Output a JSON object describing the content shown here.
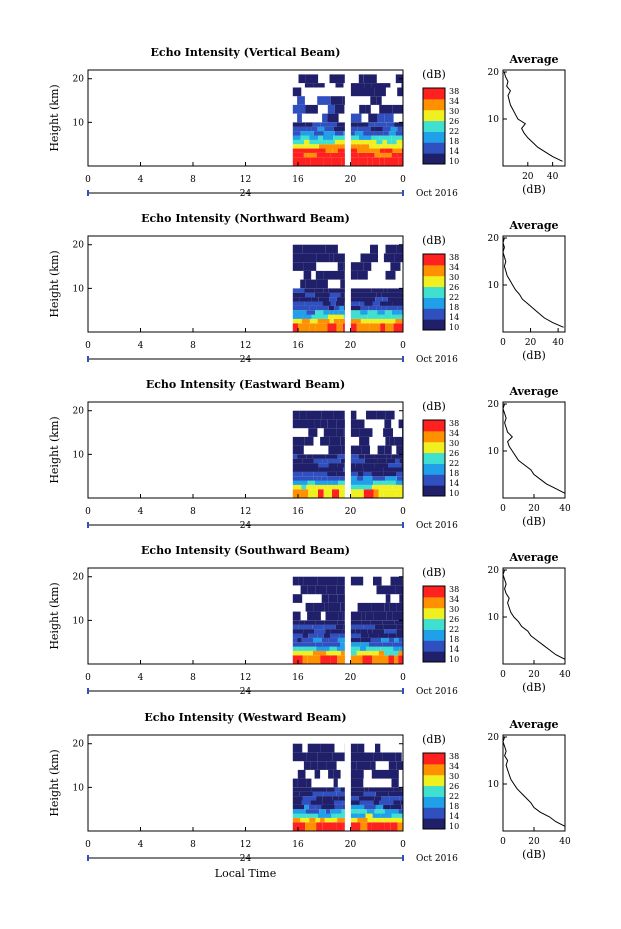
{
  "chart_data": [
    {
      "type": "heatmap",
      "title": "Echo Intensity (Vertical Beam)",
      "ylabel": "Height (km)",
      "x_ticks": [
        "0",
        "4",
        "8",
        "12",
        "16",
        "20",
        "0"
      ],
      "y_ticks": [
        "20",
        "10"
      ],
      "date_label": "24",
      "month_label": "Oct 2016",
      "colorbar_label": "(dB)",
      "colorbar_ticks": [
        "38",
        "34",
        "30",
        "26",
        "22",
        "18",
        "14",
        "10"
      ],
      "colorbar_range": [
        10,
        38
      ],
      "colors": [
        "#20206a",
        "#3050c0",
        "#20a0e8",
        "#40e0d0",
        "#f0f020",
        "#ff9000",
        "#ff2020"
      ],
      "data_start_hour": 15.6,
      "gap_hour": 19.8,
      "data_end_hour": 24,
      "heatmap_rows": [
        {
          "height_km": 1,
          "value": 38
        },
        {
          "height_km": 2,
          "value": 36
        },
        {
          "height_km": 3,
          "value": 34
        },
        {
          "height_km": 4,
          "value": 30
        },
        {
          "height_km": 5,
          "value": 26
        },
        {
          "height_km": 6,
          "value": 22
        },
        {
          "height_km": 7,
          "value": 18
        },
        {
          "height_km": 8,
          "value": 16
        },
        {
          "height_km": 9,
          "value": 14
        },
        {
          "height_km": 10,
          "value": 14
        },
        {
          "height_km": 12,
          "value": 12
        },
        {
          "height_km": 14,
          "value": 12
        },
        {
          "height_km": 16,
          "value": 11
        },
        {
          "height_km": 18,
          "value": 10
        },
        {
          "height_km": 19,
          "value": 10
        }
      ],
      "average": {
        "title": "Average",
        "xlabel": "(dB)",
        "x_ticks": [
          "20",
          "40"
        ],
        "xlim": [
          0,
          50
        ],
        "y_ticks": [
          "20",
          "10"
        ],
        "ylim": [
          0,
          20
        ],
        "profile": [
          [
            48,
            1
          ],
          [
            40,
            2
          ],
          [
            34,
            3
          ],
          [
            28,
            4
          ],
          [
            24,
            5
          ],
          [
            20,
            6
          ],
          [
            17,
            7
          ],
          [
            15,
            8
          ],
          [
            18,
            9
          ],
          [
            12,
            10
          ],
          [
            10,
            11
          ],
          [
            8,
            12
          ],
          [
            6,
            13
          ],
          [
            5,
            14
          ],
          [
            4,
            15
          ],
          [
            6,
            16
          ],
          [
            3,
            17
          ],
          [
            4,
            18
          ],
          [
            2,
            19
          ],
          [
            1,
            20
          ]
        ]
      }
    },
    {
      "type": "heatmap",
      "title": "Echo Intensity (Northward Beam)",
      "ylabel": "Height (km)",
      "x_ticks": [
        "0",
        "4",
        "8",
        "12",
        "16",
        "20",
        "0"
      ],
      "y_ticks": [
        "20",
        "10"
      ],
      "date_label": "24",
      "month_label": "Oct 2016",
      "colorbar_label": "(dB)",
      "colorbar_ticks": [
        "38",
        "34",
        "30",
        "26",
        "22",
        "18",
        "14",
        "10"
      ],
      "colorbar_range": [
        10,
        38
      ],
      "colors": [
        "#20206a",
        "#3050c0",
        "#20a0e8",
        "#40e0d0",
        "#f0f020",
        "#ff9000",
        "#ff2020"
      ],
      "data_start_hour": 15.6,
      "gap_hour": 19.8,
      "data_end_hour": 24,
      "heatmap_rows": [
        {
          "height_km": 1,
          "value": 34
        },
        {
          "height_km": 2,
          "value": 30
        },
        {
          "height_km": 3,
          "value": 24
        },
        {
          "height_km": 4,
          "value": 20
        },
        {
          "height_km": 5,
          "value": 16
        },
        {
          "height_km": 6,
          "value": 14
        },
        {
          "height_km": 7,
          "value": 13
        },
        {
          "height_km": 8,
          "value": 12
        },
        {
          "height_km": 9,
          "value": 11
        },
        {
          "height_km": 10,
          "value": 10
        },
        {
          "height_km": 12,
          "value": 10
        },
        {
          "height_km": 14,
          "value": 10
        },
        {
          "height_km": 16,
          "value": 10
        },
        {
          "height_km": 18,
          "value": 10
        }
      ],
      "average": {
        "title": "Average",
        "xlabel": "(dB)",
        "x_ticks": [
          "0",
          "20",
          "40"
        ],
        "xlim": [
          0,
          45
        ],
        "y_ticks": [
          "20",
          "10"
        ],
        "ylim": [
          0,
          20
        ],
        "profile": [
          [
            44,
            1
          ],
          [
            36,
            2
          ],
          [
            30,
            3
          ],
          [
            26,
            4
          ],
          [
            22,
            5
          ],
          [
            18,
            6
          ],
          [
            14,
            7
          ],
          [
            12,
            8
          ],
          [
            9,
            9
          ],
          [
            7,
            10
          ],
          [
            5,
            11
          ],
          [
            3,
            12
          ],
          [
            2,
            13
          ],
          [
            1,
            14
          ],
          [
            2,
            15
          ],
          [
            1,
            16
          ],
          [
            0,
            17
          ],
          [
            1,
            18
          ],
          [
            0,
            19
          ],
          [
            1,
            20
          ]
        ]
      }
    },
    {
      "type": "heatmap",
      "title": "Echo Intensity (Eastward Beam)",
      "ylabel": "Height (km)",
      "x_ticks": [
        "0",
        "4",
        "8",
        "12",
        "16",
        "20",
        "0"
      ],
      "y_ticks": [
        "20",
        "10"
      ],
      "date_label": "24",
      "month_label": "Oct 2016",
      "colorbar_label": "(dB)",
      "colorbar_ticks": [
        "38",
        "34",
        "30",
        "26",
        "22",
        "18",
        "14",
        "10"
      ],
      "colorbar_range": [
        10,
        38
      ],
      "colors": [
        "#20206a",
        "#3050c0",
        "#20a0e8",
        "#40e0d0",
        "#f0f020",
        "#ff9000",
        "#ff2020"
      ],
      "data_start_hour": 15.6,
      "gap_hour": 19.8,
      "data_end_hour": 24,
      "heatmap_rows": [
        {
          "height_km": 1,
          "value": 32
        },
        {
          "height_km": 2,
          "value": 26
        },
        {
          "height_km": 3,
          "value": 22
        },
        {
          "height_km": 4,
          "value": 18
        },
        {
          "height_km": 5,
          "value": 15
        },
        {
          "height_km": 6,
          "value": 13
        },
        {
          "height_km": 7,
          "value": 12
        },
        {
          "height_km": 8,
          "value": 12
        },
        {
          "height_km": 9,
          "value": 11
        },
        {
          "height_km": 10,
          "value": 10
        },
        {
          "height_km": 12,
          "value": 10
        },
        {
          "height_km": 14,
          "value": 10
        },
        {
          "height_km": 16,
          "value": 10
        },
        {
          "height_km": 18,
          "value": 10
        }
      ],
      "average": {
        "title": "Average",
        "xlabel": "(dB)",
        "x_ticks": [
          "0",
          "20",
          "40"
        ],
        "xlim": [
          0,
          40
        ],
        "y_ticks": [
          "20",
          "10"
        ],
        "ylim": [
          0,
          20
        ],
        "profile": [
          [
            40,
            1
          ],
          [
            34,
            2
          ],
          [
            28,
            3
          ],
          [
            24,
            4
          ],
          [
            20,
            5
          ],
          [
            18,
            6
          ],
          [
            14,
            7
          ],
          [
            10,
            8
          ],
          [
            8,
            9
          ],
          [
            6,
            10
          ],
          [
            4,
            11
          ],
          [
            3,
            12
          ],
          [
            6,
            13
          ],
          [
            3,
            14
          ],
          [
            2,
            15
          ],
          [
            1,
            16
          ],
          [
            2,
            17
          ],
          [
            1,
            18
          ],
          [
            0,
            19
          ],
          [
            1,
            20
          ]
        ]
      }
    },
    {
      "type": "heatmap",
      "title": "Echo Intensity (Southward Beam)",
      "ylabel": "Height (km)",
      "x_ticks": [
        "0",
        "4",
        "8",
        "12",
        "16",
        "20",
        "0"
      ],
      "y_ticks": [
        "20",
        "10"
      ],
      "date_label": "24",
      "month_label": "Oct 2016",
      "colorbar_label": "(dB)",
      "colorbar_ticks": [
        "38",
        "34",
        "30",
        "26",
        "22",
        "18",
        "14",
        "10"
      ],
      "colorbar_range": [
        10,
        38
      ],
      "colors": [
        "#20206a",
        "#3050c0",
        "#20a0e8",
        "#40e0d0",
        "#f0f020",
        "#ff9000",
        "#ff2020"
      ],
      "data_start_hour": 15.6,
      "gap_hour": 19.8,
      "data_end_hour": 24,
      "heatmap_rows": [
        {
          "height_km": 1,
          "value": 34
        },
        {
          "height_km": 2,
          "value": 28
        },
        {
          "height_km": 3,
          "value": 22
        },
        {
          "height_km": 4,
          "value": 18
        },
        {
          "height_km": 5,
          "value": 15
        },
        {
          "height_km": 6,
          "value": 13
        },
        {
          "height_km": 7,
          "value": 12
        },
        {
          "height_km": 8,
          "value": 12
        },
        {
          "height_km": 9,
          "value": 11
        },
        {
          "height_km": 10,
          "value": 10
        },
        {
          "height_km": 12,
          "value": 10
        },
        {
          "height_km": 14,
          "value": 10
        },
        {
          "height_km": 16,
          "value": 10
        },
        {
          "height_km": 18,
          "value": 10
        }
      ],
      "average": {
        "title": "Average",
        "xlabel": "(dB)",
        "x_ticks": [
          "0",
          "20",
          "40"
        ],
        "xlim": [
          0,
          40
        ],
        "y_ticks": [
          "20",
          "10"
        ],
        "ylim": [
          0,
          20
        ],
        "profile": [
          [
            40,
            1
          ],
          [
            34,
            2
          ],
          [
            30,
            3
          ],
          [
            26,
            4
          ],
          [
            22,
            5
          ],
          [
            18,
            6
          ],
          [
            16,
            7
          ],
          [
            12,
            8
          ],
          [
            10,
            9
          ],
          [
            7,
            10
          ],
          [
            5,
            11
          ],
          [
            4,
            12
          ],
          [
            3,
            13
          ],
          [
            4,
            14
          ],
          [
            2,
            15
          ],
          [
            1,
            16
          ],
          [
            2,
            17
          ],
          [
            1,
            18
          ],
          [
            0,
            19
          ],
          [
            1,
            20
          ]
        ]
      }
    },
    {
      "type": "heatmap",
      "title": "Echo Intensity (Westward Beam)",
      "ylabel": "Height (km)",
      "xlabel": "Local Time",
      "x_ticks": [
        "0",
        "4",
        "8",
        "12",
        "16",
        "20",
        "0"
      ],
      "y_ticks": [
        "20",
        "10"
      ],
      "date_label": "24",
      "month_label": "Oct 2016",
      "colorbar_label": "(dB)",
      "colorbar_ticks": [
        "38",
        "34",
        "30",
        "26",
        "22",
        "18",
        "14",
        "10"
      ],
      "colorbar_range": [
        10,
        38
      ],
      "colors": [
        "#20206a",
        "#3050c0",
        "#20a0e8",
        "#40e0d0",
        "#f0f020",
        "#ff9000",
        "#ff2020"
      ],
      "data_start_hour": 15.6,
      "gap_hour": 19.8,
      "data_end_hour": 24,
      "heatmap_rows": [
        {
          "height_km": 1,
          "value": 36
        },
        {
          "height_km": 2,
          "value": 30
        },
        {
          "height_km": 3,
          "value": 24
        },
        {
          "height_km": 4,
          "value": 20
        },
        {
          "height_km": 5,
          "value": 16
        },
        {
          "height_km": 6,
          "value": 14
        },
        {
          "height_km": 7,
          "value": 13
        },
        {
          "height_km": 8,
          "value": 12
        },
        {
          "height_km": 9,
          "value": 11
        },
        {
          "height_km": 10,
          "value": 10
        },
        {
          "height_km": 12,
          "value": 10
        },
        {
          "height_km": 14,
          "value": 10
        },
        {
          "height_km": 16,
          "value": 10
        },
        {
          "height_km": 18,
          "value": 10
        }
      ],
      "average": {
        "title": "Average",
        "xlabel": "(dB)",
        "x_ticks": [
          "0",
          "20",
          "40"
        ],
        "xlim": [
          0,
          40
        ],
        "y_ticks": [
          "20",
          "10"
        ],
        "ylim": [
          0,
          20
        ],
        "profile": [
          [
            40,
            1
          ],
          [
            34,
            2
          ],
          [
            30,
            3
          ],
          [
            24,
            4
          ],
          [
            20,
            5
          ],
          [
            18,
            6
          ],
          [
            15,
            7
          ],
          [
            12,
            8
          ],
          [
            9,
            9
          ],
          [
            7,
            10
          ],
          [
            5,
            11
          ],
          [
            4,
            12
          ],
          [
            3,
            13
          ],
          [
            2,
            14
          ],
          [
            3,
            15
          ],
          [
            1,
            16
          ],
          [
            2,
            17
          ],
          [
            1,
            18
          ],
          [
            0,
            19
          ],
          [
            1,
            20
          ]
        ]
      }
    }
  ]
}
